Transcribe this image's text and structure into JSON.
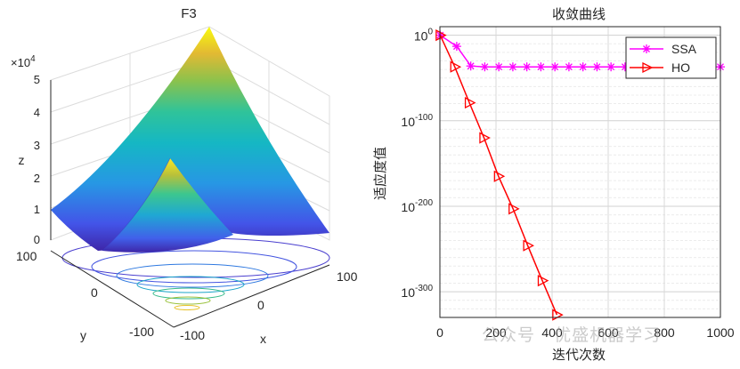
{
  "chart_data": [
    {
      "type": "surface",
      "title": "F3",
      "xlabel": "x",
      "ylabel": "y",
      "zlabel": "z",
      "z_exponent_label": "×10",
      "z_exponent_power": "4",
      "x_ticks": [
        "-100",
        "0",
        "100"
      ],
      "y_ticks": [
        "-100",
        "0",
        "100"
      ],
      "z_ticks": [
        "0",
        "1",
        "2",
        "3",
        "4",
        "5"
      ],
      "xlim": [
        -100,
        100
      ],
      "ylim": [
        -100,
        100
      ],
      "zlim": [
        0,
        5
      ],
      "colormap": "parula",
      "grid": true
    },
    {
      "type": "line",
      "title": "收敛曲线",
      "xlabel": "迭代次数",
      "ylabel": "适应度值",
      "y_scale": "log",
      "xlim": [
        0,
        1000
      ],
      "ylim_exponent": [
        -330,
        10
      ],
      "x_ticks": [
        "0",
        "200",
        "400",
        "600",
        "800",
        "1000"
      ],
      "y_ticks": [
        {
          "base": "10",
          "exp": "0",
          "value": 0
        },
        {
          "base": "10",
          "exp": "-100",
          "value": -100
        },
        {
          "base": "10",
          "exp": "-200",
          "value": -200
        },
        {
          "base": "10",
          "exp": "-300",
          "value": -300
        }
      ],
      "grid": true,
      "legend_position": "top-right",
      "series": [
        {
          "name": "SSA",
          "color": "#ff00ff",
          "marker": "asterisk",
          "x": [
            1,
            60,
            110,
            160,
            210,
            260,
            310,
            360,
            410,
            460,
            510,
            560,
            610,
            660,
            710,
            760,
            810,
            860,
            910,
            960,
            1000
          ],
          "log10_y": [
            0,
            -13,
            -36,
            -37,
            -37,
            -37,
            -37,
            -37,
            -37,
            -37,
            -37,
            -37,
            -37,
            -37,
            -37,
            -37,
            -37,
            -37,
            -37,
            -37,
            -37
          ]
        },
        {
          "name": "HO",
          "color": "#ff0000",
          "marker": "triangle-right",
          "x": [
            1,
            53,
            105,
            157,
            209,
            261,
            313,
            365,
            417
          ],
          "log10_y": [
            0,
            -37,
            -79,
            -120,
            -165,
            -203,
            -246,
            -287,
            -327
          ]
        }
      ]
    }
  ],
  "watermark": "公众号 · 优盛机器学习"
}
